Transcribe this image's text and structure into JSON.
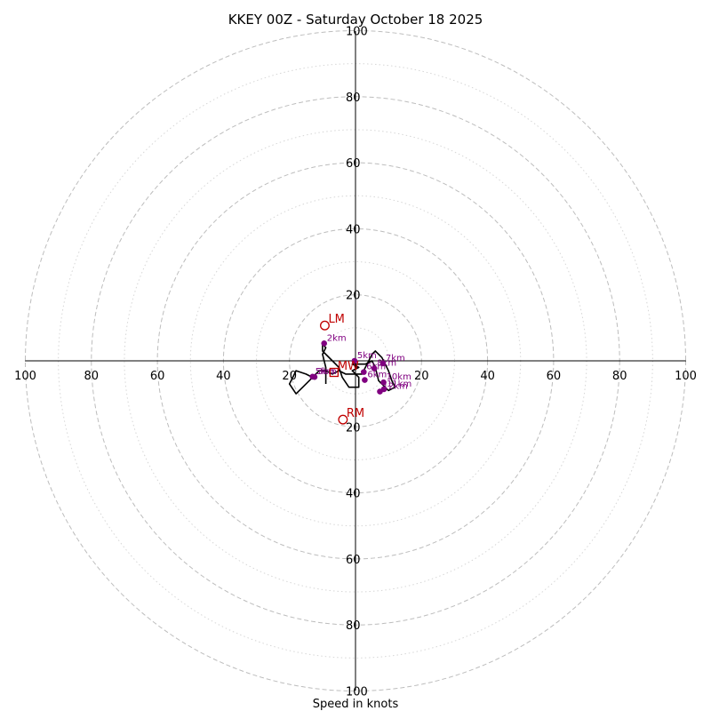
{
  "chart_data": {
    "type": "hodograph",
    "title": "KKEY 00Z - Saturday October 18 2025",
    "xlabel": "Speed in knots",
    "rings_major": [
      20,
      40,
      60,
      80,
      100
    ],
    "rings_minor": [
      10,
      30,
      50,
      70,
      90
    ],
    "ticks": [
      20,
      40,
      60,
      80,
      100
    ],
    "tick_labels": [
      "20",
      "40",
      "60",
      "80",
      "100"
    ],
    "xlim": [
      -100,
      100
    ],
    "ylim": [
      -100,
      100
    ],
    "hodograph_trace": [
      [
        -9,
        -7
      ],
      [
        -9,
        -2
      ],
      [
        -10,
        2
      ],
      [
        -9,
        4
      ],
      [
        -10,
        5
      ],
      [
        -10,
        3
      ],
      [
        -7,
        0
      ],
      [
        -5,
        -2
      ],
      [
        -4,
        -5
      ],
      [
        -2,
        -8
      ],
      [
        1,
        -8
      ],
      [
        1,
        -5
      ],
      [
        -1,
        -3
      ],
      [
        1,
        -2
      ],
      [
        -1,
        -1
      ],
      [
        3,
        -1
      ],
      [
        5,
        0
      ],
      [
        6,
        -2
      ],
      [
        7,
        -6
      ],
      [
        10,
        -9
      ],
      [
        12,
        -8
      ],
      [
        11,
        -6
      ],
      [
        10,
        -3
      ],
      [
        9,
        -1
      ],
      [
        8,
        1
      ],
      [
        6,
        3
      ],
      [
        5,
        2
      ],
      [
        4,
        0
      ],
      [
        3,
        -2
      ],
      [
        2,
        -4
      ],
      [
        -3,
        -4
      ],
      [
        -5,
        -3
      ],
      [
        -7,
        -4
      ],
      [
        -9,
        -3
      ],
      [
        -11,
        -3
      ],
      [
        -13,
        -5
      ],
      [
        -15,
        -4
      ],
      [
        -18,
        -3
      ],
      [
        -19,
        -5
      ],
      [
        -20,
        -7
      ],
      [
        -18,
        -10
      ],
      [
        -16,
        -8
      ],
      [
        -14,
        -6
      ],
      [
        -12,
        -4
      ]
    ],
    "height_markers": [
      {
        "label": "2km",
        "u": -9.5,
        "v": 5.3
      },
      {
        "label": "5km",
        "u": -0.3,
        "v": 0.0
      },
      {
        "label": "6km",
        "u": 2.8,
        "v": -5.8
      },
      {
        "label": "6km",
        "u": 2.5,
        "v": -3.4
      },
      {
        "label": "8km",
        "u": 5.7,
        "v": -2.3
      },
      {
        "label": "7km",
        "u": 8.3,
        "v": -0.8
      },
      {
        "label": "10km",
        "u": 8.5,
        "v": -6.5
      },
      {
        "label": "11km",
        "u": 8.6,
        "v": -8.6
      },
      {
        "label": "12km",
        "u": 7.4,
        "v": -9.3
      },
      {
        "label": "5km",
        "u": -13.0,
        "v": -4.8
      },
      {
        "label": "3km",
        "u": -12.4,
        "v": -4.9
      }
    ],
    "storm_motions": [
      {
        "label": "LM",
        "u": -9.3,
        "v": 10.7
      },
      {
        "label": "RM",
        "u": -3.8,
        "v": -17.8
      },
      {
        "label": "MW",
        "u": -6.5,
        "v": -3.5
      }
    ],
    "colors": {
      "trace": "#000000",
      "markers": "#800080",
      "motions": "#c00000",
      "grid": "#bdbdbd"
    }
  }
}
